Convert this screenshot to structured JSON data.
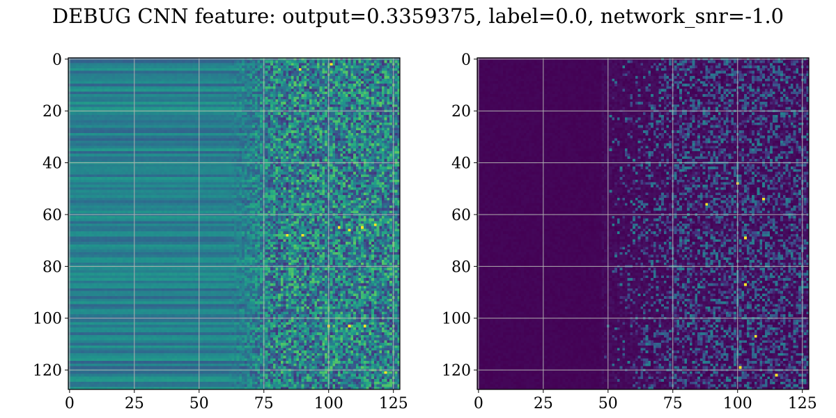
{
  "title": "DEBUG CNN feature: output=0.3359375, label=0.0, network_snr=-1.0",
  "chart_data": [
    {
      "type": "heatmap",
      "name": "left",
      "colormap": "viridis",
      "xlim": [
        -0.5,
        127.5
      ],
      "ylim": [
        127.5,
        -0.5
      ],
      "x_ticks": [
        0,
        25,
        50,
        75,
        100,
        125
      ],
      "y_ticks": [
        0,
        20,
        40,
        60,
        80,
        100,
        120
      ],
      "grid": true,
      "rows": 128,
      "cols": 128,
      "description_profile": {
        "cols_0_70": "smooth horizontal stripes, mid-range values (teal/green)",
        "cols_70_128": "noisy speckle with occasional bright yellow pixels"
      },
      "bright_spots": [
        [
          104,
          65
        ],
        [
          113,
          65
        ],
        [
          108,
          66
        ],
        [
          84,
          68
        ],
        [
          90,
          68
        ],
        [
          100,
          103
        ],
        [
          108,
          103
        ],
        [
          114,
          103
        ],
        [
          122,
          121
        ],
        [
          118,
          64
        ],
        [
          101,
          2
        ],
        [
          89,
          4
        ]
      ]
    },
    {
      "type": "heatmap",
      "name": "right",
      "colormap": "viridis",
      "xlim": [
        -0.5,
        127.5
      ],
      "ylim": [
        127.5,
        -0.5
      ],
      "x_ticks": [
        0,
        25,
        50,
        75,
        100,
        125
      ],
      "y_ticks": [
        0,
        20,
        40,
        60,
        80,
        100,
        120
      ],
      "grid": true,
      "rows": 128,
      "cols": 128,
      "description_profile": {
        "cols_0_50": "near-zero values (dark purple)",
        "cols_50_128": "sparse noisy activations, mostly purple/blue with occasional green/yellow"
      },
      "bright_spots": [
        [
          100,
          48
        ],
        [
          103,
          69
        ],
        [
          103,
          87
        ],
        [
          101,
          119
        ],
        [
          110,
          54
        ],
        [
          107,
          107
        ],
        [
          88,
          56
        ],
        [
          115,
          122
        ]
      ]
    }
  ]
}
